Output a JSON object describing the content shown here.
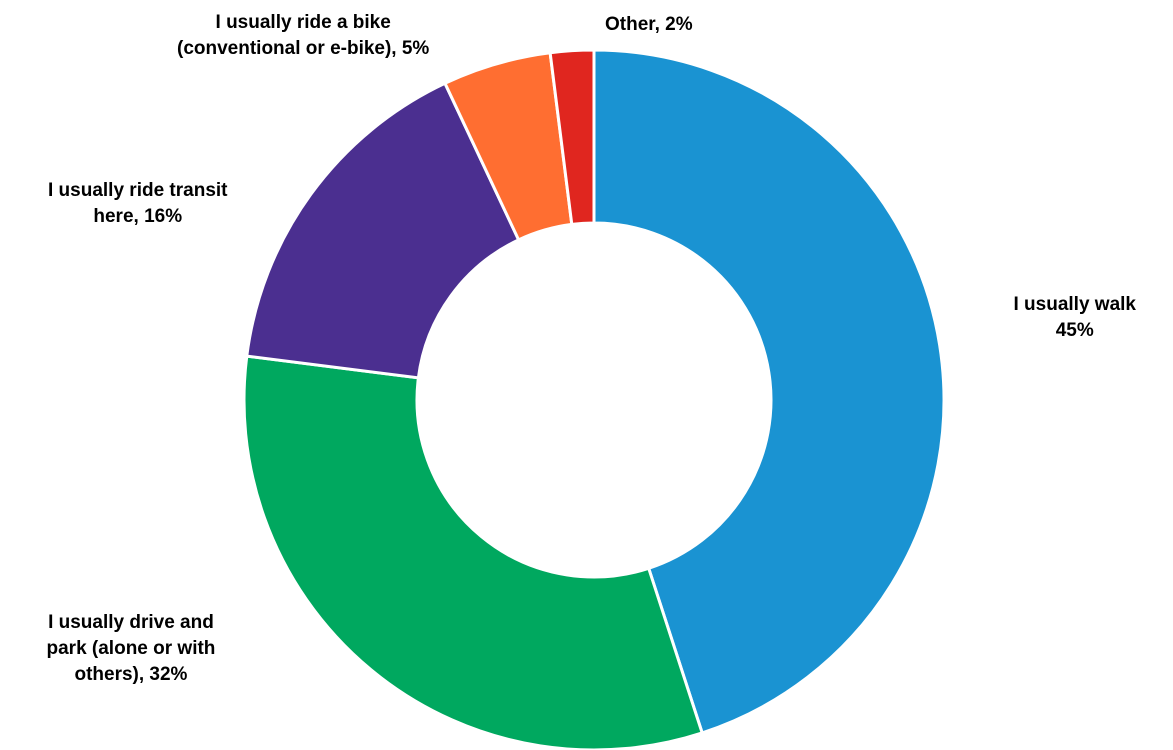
{
  "chart_data": {
    "type": "pie",
    "variant": "donut",
    "slices": [
      {
        "name": "I usually walk",
        "value": 45,
        "label_lines": [
          "I usually walk",
          "45%"
        ],
        "color": "#1A93D2"
      },
      {
        "name": "I usually drive and park (alone or with others)",
        "value": 32,
        "label_lines": [
          "I usually drive and",
          "park (alone or with",
          "others), 32%"
        ],
        "color": "#00A85F"
      },
      {
        "name": "I usually ride transit here",
        "value": 16,
        "label_lines": [
          "I usually ride transit",
          "here, 16%"
        ],
        "color": "#4B2F90"
      },
      {
        "name": "I usually ride a bike (conventional or e-bike)",
        "value": 5,
        "label_lines": [
          "I usually ride a bike",
          "(conventional or e-bike), 5%"
        ],
        "color": "#FF6E31"
      },
      {
        "name": "Other",
        "value": 2,
        "label_lines": [
          "Other, 2%"
        ],
        "color": "#E0261F"
      }
    ],
    "legend": "none"
  }
}
